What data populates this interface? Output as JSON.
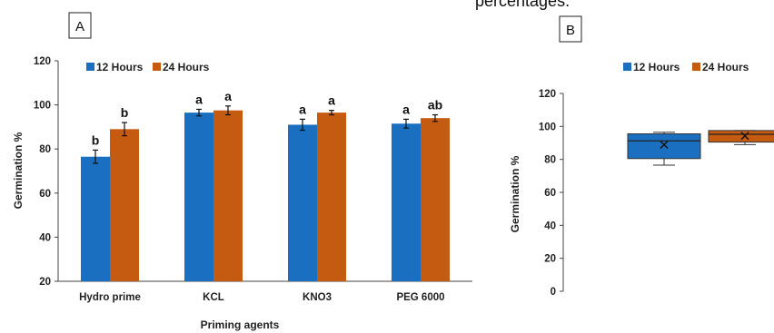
{
  "caption_fragment": "percentages.",
  "colors": {
    "hours12": "#1b6fc0",
    "hours24": "#c55a11"
  },
  "chart_data": [
    {
      "panel": "A",
      "type": "bar",
      "categories": [
        "Hydro prime",
        "KCL",
        "KNO3",
        "PEG 6000"
      ],
      "series": [
        {
          "name": "12 Hours",
          "values": [
            76.5,
            96.5,
            91,
            91.5
          ],
          "errors": [
            3,
            1.5,
            2.5,
            2
          ]
        },
        {
          "name": "24 Hours",
          "values": [
            89,
            97.5,
            96.5,
            94
          ],
          "errors": [
            3,
            2,
            1,
            1.5
          ]
        }
      ],
      "significance": [
        [
          "b",
          "b"
        ],
        [
          "a",
          "a"
        ],
        [
          "a",
          "a"
        ],
        [
          "a",
          "ab"
        ]
      ],
      "xlabel": "Priming agents",
      "ylabel": "Germination %",
      "ylim": [
        20,
        120
      ],
      "yticks": [
        20,
        40,
        60,
        80,
        100,
        120
      ],
      "legend": "top-left",
      "grid": false
    },
    {
      "panel": "B",
      "type": "box",
      "series": [
        {
          "name": "12 Hours",
          "min": 76.5,
          "q1": 80.5,
          "median": 91.25,
          "q3": 95.5,
          "max": 96.5,
          "mean": 88.9
        },
        {
          "name": "24 Hours",
          "min": 89,
          "q1": 90.5,
          "median": 95.25,
          "q3": 97.5,
          "max": 97.5,
          "mean": 94.25
        }
      ],
      "ylabel": "Germination %",
      "ylim": [
        0,
        120
      ],
      "yticks": [
        0,
        20,
        40,
        60,
        80,
        100,
        120
      ],
      "legend": "top",
      "grid": false
    }
  ]
}
